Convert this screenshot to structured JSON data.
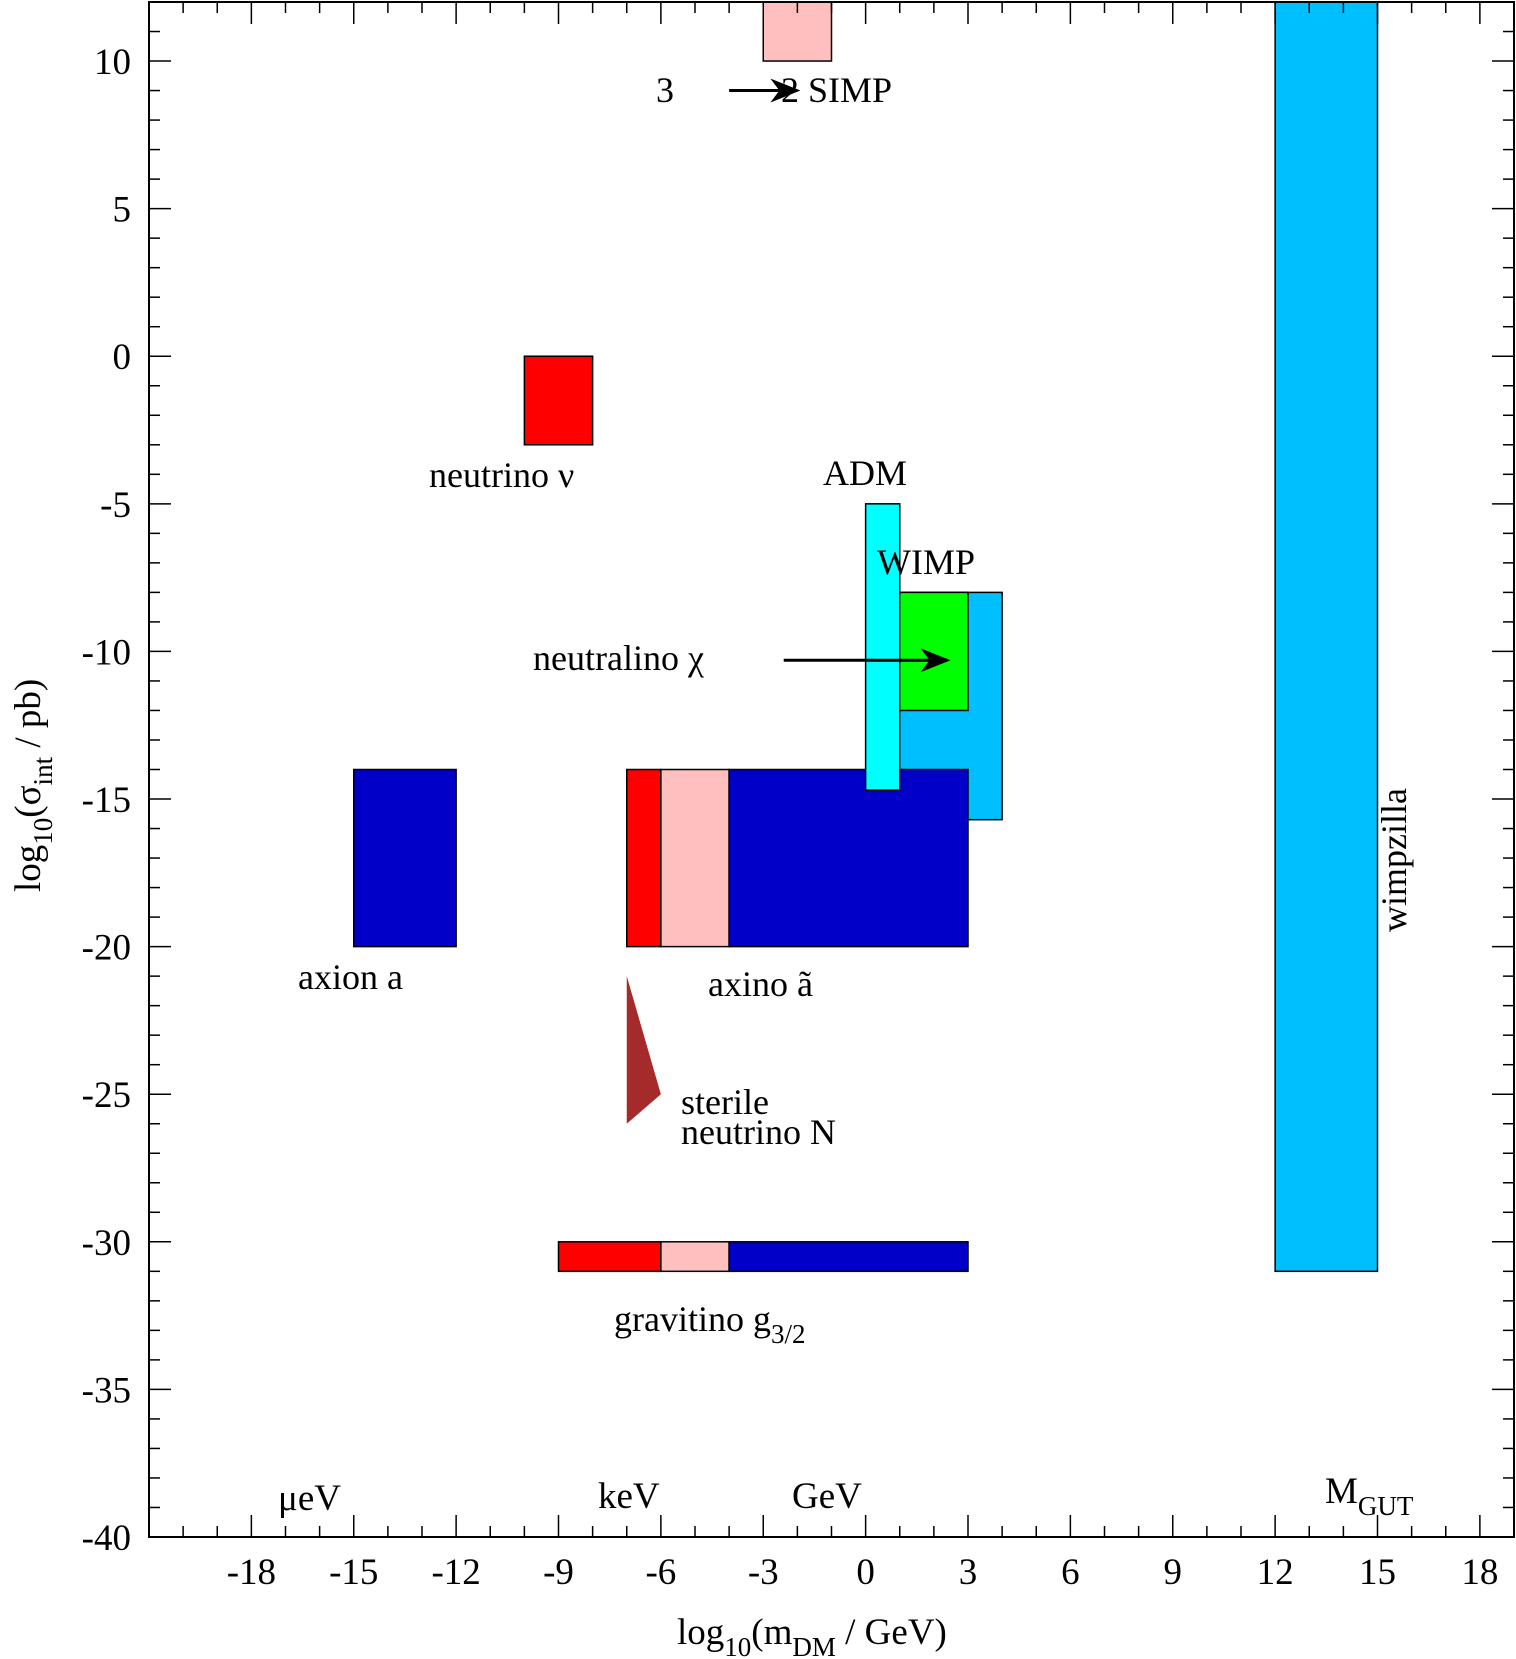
{
  "chart_data": {
    "type": "rectangle-region",
    "xlabel": "log10(mDM / GeV)",
    "ylabel": "log10(σint / pb)",
    "xlim": [
      -21,
      19
    ],
    "ylim": [
      -40,
      12
    ],
    "xticks": [
      -18,
      -15,
      -12,
      -9,
      -6,
      -3,
      0,
      3,
      6,
      9,
      12,
      15,
      18
    ],
    "yticks": [
      -40,
      -35,
      -30,
      -25,
      -20,
      -15,
      -10,
      -5,
      0,
      5,
      10
    ],
    "regions": [
      {
        "id": "simp",
        "x": [
          -3,
          -1
        ],
        "y": [
          10,
          12
        ],
        "color": "#ffbfbf"
      },
      {
        "id": "neutrino",
        "x": [
          -10,
          -8
        ],
        "y": [
          -3,
          0
        ],
        "color": "#ff0000"
      },
      {
        "id": "wimpzilla",
        "x": [
          12,
          15
        ],
        "y": [
          -31,
          12
        ],
        "color": "#00bfff"
      },
      {
        "id": "wimp",
        "x": [
          1,
          4
        ],
        "y": [
          -15.7,
          -8
        ],
        "color": "#00bfff"
      },
      {
        "id": "neutralino",
        "x": [
          1,
          3
        ],
        "y": [
          -12,
          -8
        ],
        "color": "#00ff00"
      },
      {
        "id": "axion",
        "x": [
          -15,
          -12
        ],
        "y": [
          -20,
          -14
        ],
        "color": "#0000c8"
      },
      {
        "id": "axino-hot",
        "x": [
          -7,
          -6
        ],
        "y": [
          -20,
          -14
        ],
        "color": "#ff0000"
      },
      {
        "id": "axino-warm",
        "x": [
          -6,
          -4
        ],
        "y": [
          -20,
          -14
        ],
        "color": "#ffbfbf"
      },
      {
        "id": "axino-cold",
        "x": [
          -4,
          3
        ],
        "y": [
          -20,
          -14
        ],
        "color": "#0000c8"
      },
      {
        "id": "adm",
        "x": [
          0,
          1
        ],
        "y": [
          -14.7,
          -5
        ],
        "color": "#00ffff"
      },
      {
        "id": "gravitino-hot",
        "x": [
          -9,
          -6
        ],
        "y": [
          -31,
          -30
        ],
        "color": "#ff0000"
      },
      {
        "id": "gravitino-warm",
        "x": [
          -6,
          -4
        ],
        "y": [
          -31,
          -30
        ],
        "color": "#ffbfbf"
      },
      {
        "id": "gravitino-cold",
        "x": [
          -4,
          3
        ],
        "y": [
          -31,
          -30
        ],
        "color": "#0000c8"
      }
    ],
    "sterile_neutrino_region": {
      "points": [
        [
          -7,
          -21
        ],
        [
          -6,
          -25
        ],
        [
          -7,
          -26
        ]
      ],
      "color": "#a52a2a"
    },
    "arrows": [
      {
        "from": [
          -4,
          9
        ],
        "to": [
          -2,
          9
        ]
      },
      {
        "from": [
          -2.4,
          -10.3
        ],
        "to": [
          2.4,
          -10.3
        ]
      }
    ]
  },
  "labels": {
    "simp_left": "3",
    "simp_right": "2 SIMP",
    "neutrino": "neutrino ν",
    "adm": "ADM",
    "wimp": "WIMP",
    "neutralino": "neutralino χ",
    "axion": "axion a",
    "axino": "axino ã",
    "sterile_1": "sterile",
    "sterile_2": "neutrino N",
    "gravitino": "gravitino g",
    "gravitino_sub": "3/2",
    "wimpzilla": "wimpzilla"
  },
  "units": {
    "uev": "μeV",
    "kev": "keV",
    "gev": "GeV",
    "mgut": "M",
    "mgut_sub": "GUT"
  },
  "axis_titles": {
    "x_pre": "log",
    "x_sub": "10",
    "x_mid": "(m",
    "x_sub2": "DM",
    "x_post": " / GeV)",
    "y_pre": "log",
    "y_sub": "10",
    "y_mid": "(σ",
    "y_sub2": "int",
    "y_post": " / pb)"
  }
}
